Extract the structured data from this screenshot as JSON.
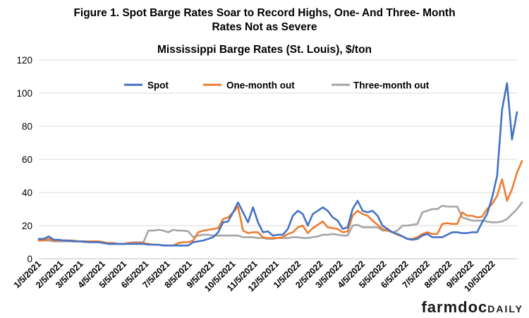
{
  "chart_data": {
    "type": "line",
    "title_line1": "Figure 1. Spot Barge Rates Soar to Record Highs, One- And Three- Month",
    "title_line2": "Rates Not as Severe",
    "subtitle": "Mississippi Barge Rates (St. Louis), $/ton",
    "ylim": [
      0,
      120
    ],
    "y_ticks": [
      0,
      20,
      40,
      60,
      80,
      100,
      120
    ],
    "x_tick_labels": [
      "1/5/2021",
      "2/5/2021",
      "3/5/2021",
      "4/5/2021",
      "5/5/2021",
      "6/5/2021",
      "7/5/2021",
      "8/5/2021",
      "9/5/2021",
      "10/5/2021",
      "11/5/2021",
      "12/5/2021",
      "1/5/2022",
      "2/5/2022",
      "3/5/2022",
      "4/5/2022",
      "5/5/2022",
      "6/5/2022",
      "7/5/2022",
      "8/5/2022",
      "9/5/2022",
      "10/5/2022"
    ],
    "x_tick_weeks": [
      0,
      4.43,
      8.43,
      12.86,
      17.14,
      21.57,
      25.86,
      30.29,
      34.71,
      39,
      43.43,
      47.71,
      52.14,
      56.57,
      60.57,
      65,
      69.29,
      73.71,
      78,
      82.43,
      86.86,
      91.14
    ],
    "grid": "horizontal",
    "legend_position": "top",
    "series": [
      {
        "name": "Spot",
        "color": "#4472C4",
        "values": [
          12,
          12,
          13.5,
          11.5,
          11.5,
          11,
          11,
          10.5,
          10.5,
          10.5,
          10,
          10,
          10,
          9.5,
          9,
          9,
          9,
          9,
          9,
          9,
          9,
          9,
          8.5,
          8.5,
          8.5,
          8,
          8,
          8,
          8,
          8,
          8,
          10,
          10.5,
          11,
          12,
          13,
          16,
          22,
          22.5,
          28,
          34,
          28,
          22,
          31,
          22,
          16,
          16.5,
          14,
          14.5,
          14.5,
          18,
          26,
          29,
          27,
          20,
          27,
          29,
          31,
          29,
          25,
          23,
          18,
          19,
          30,
          35,
          29,
          28,
          29,
          26,
          20,
          18,
          16,
          15,
          13.5,
          12,
          11.5,
          12,
          14,
          15,
          13,
          13,
          13,
          14.5,
          16,
          16,
          15.5,
          15.5,
          16,
          16,
          22,
          27,
          37,
          50,
          90,
          106,
          72,
          88.5
        ]
      },
      {
        "name": "One-month out",
        "color": "#ED7D31",
        "values": [
          11,
          11,
          12,
          11,
          11,
          11,
          11,
          11,
          10.5,
          10.5,
          10.5,
          10.5,
          10.5,
          10,
          9.5,
          9.5,
          9,
          9,
          9.5,
          9.5,
          9.5,
          9.5,
          9,
          8.5,
          8.5,
          8,
          8,
          8,
          9.5,
          10,
          10,
          11,
          16,
          17,
          17.5,
          18,
          18.5,
          24,
          25,
          28,
          31.5,
          17,
          15.5,
          16,
          16,
          13,
          12.5,
          12.5,
          12.5,
          13,
          15,
          16,
          19,
          20,
          15.5,
          18.5,
          20.5,
          22.5,
          19,
          18.5,
          18,
          16,
          16.5,
          26,
          29,
          27,
          26,
          23,
          20.5,
          18,
          17,
          16,
          14.5,
          13.5,
          12,
          12,
          13,
          15,
          16,
          15,
          15,
          21,
          21.5,
          21,
          21,
          28,
          26,
          26,
          25,
          25.5,
          30,
          33,
          38,
          48,
          35,
          42,
          52,
          59
        ]
      },
      {
        "name": "Three-month out",
        "color": "#A5A5A5",
        "values": [
          11,
          11,
          11,
          10.5,
          10.5,
          10.5,
          10.5,
          10.5,
          10.5,
          10,
          10,
          10,
          10,
          10,
          9,
          9,
          9,
          9,
          9.5,
          10,
          10,
          10,
          17,
          17,
          17.5,
          17,
          16,
          17.5,
          17,
          17,
          16.5,
          13,
          14,
          14.5,
          14.5,
          14,
          14,
          14,
          14,
          14,
          14,
          13,
          13,
          13,
          12.5,
          12.5,
          12,
          12,
          12.5,
          12.5,
          12.5,
          13,
          13,
          12.5,
          12.5,
          13,
          13.5,
          14.5,
          14.5,
          15,
          14.5,
          14,
          14,
          20,
          20.5,
          19,
          19,
          19,
          19,
          17,
          17,
          16,
          17,
          20,
          20,
          20.5,
          21,
          28,
          29,
          30,
          30,
          32,
          31.5,
          31.5,
          31.5,
          25,
          24,
          23,
          23,
          23,
          22.5,
          22,
          22,
          22.5,
          24,
          27,
          30,
          34
        ]
      }
    ]
  },
  "branding": {
    "part1": "farmdoc",
    "part2": "DAILY"
  }
}
